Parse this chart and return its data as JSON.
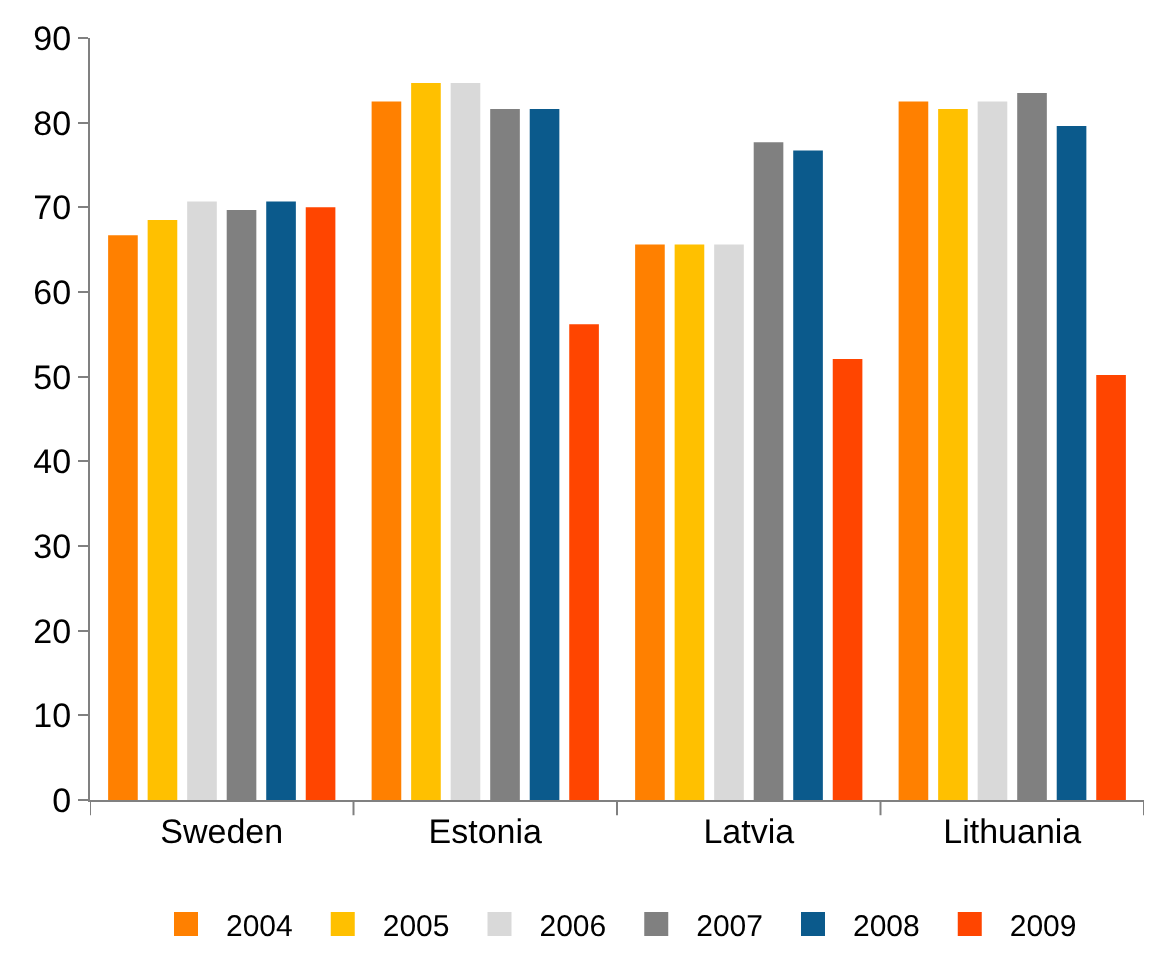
{
  "chart_data": {
    "type": "bar",
    "categories": [
      "Sweden",
      "Estonia",
      "Latvia",
      "Lithuania"
    ],
    "series": [
      {
        "name": "2004",
        "color": "#ff8000",
        "values": [
          66.7,
          82.5,
          65.6,
          82.5
        ]
      },
      {
        "name": "2005",
        "color": "#ffc000",
        "values": [
          68.5,
          84.7,
          65.6,
          81.6
        ]
      },
      {
        "name": "2006",
        "color": "#d9d9d9",
        "values": [
          70.7,
          84.7,
          65.6,
          82.5
        ]
      },
      {
        "name": "2007",
        "color": "#808080",
        "values": [
          69.7,
          81.6,
          77.7,
          83.5
        ]
      },
      {
        "name": "2008",
        "color": "#0b5a8c",
        "values": [
          70.7,
          81.6,
          76.7,
          79.6
        ]
      },
      {
        "name": "2009",
        "color": "#ff4500",
        "values": [
          70.0,
          56.2,
          52.1,
          50.2
        ]
      }
    ],
    "ylim": [
      0,
      90
    ],
    "yticks": [
      0,
      10,
      20,
      30,
      40,
      50,
      60,
      70,
      80,
      90
    ],
    "legend": "bottom"
  }
}
